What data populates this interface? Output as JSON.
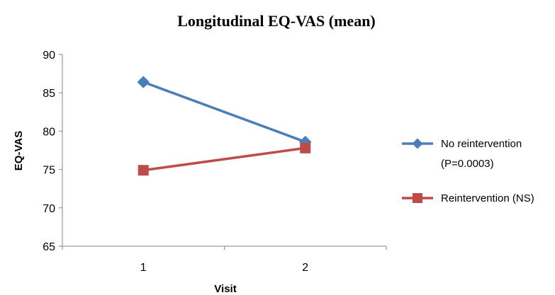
{
  "chart_data": {
    "type": "line",
    "title": "Longitudinal EQ-VAS (mean)",
    "xlabel": "Visit",
    "ylabel": "EQ-VAS",
    "categories": [
      "1",
      "2"
    ],
    "ylim": [
      65,
      90
    ],
    "yticks": [
      65,
      70,
      75,
      80,
      85,
      90
    ],
    "grid": false,
    "legend_position": "right",
    "series": [
      {
        "name": "No reintervention",
        "name_line2": "(P=0.0003)",
        "values": [
          86.4,
          78.6
        ],
        "color": "#4a7ebb",
        "marker": "diamond"
      },
      {
        "name": "Reintervention (NS)",
        "values": [
          74.9,
          77.8
        ],
        "color": "#be4b48",
        "marker": "square"
      }
    ]
  }
}
